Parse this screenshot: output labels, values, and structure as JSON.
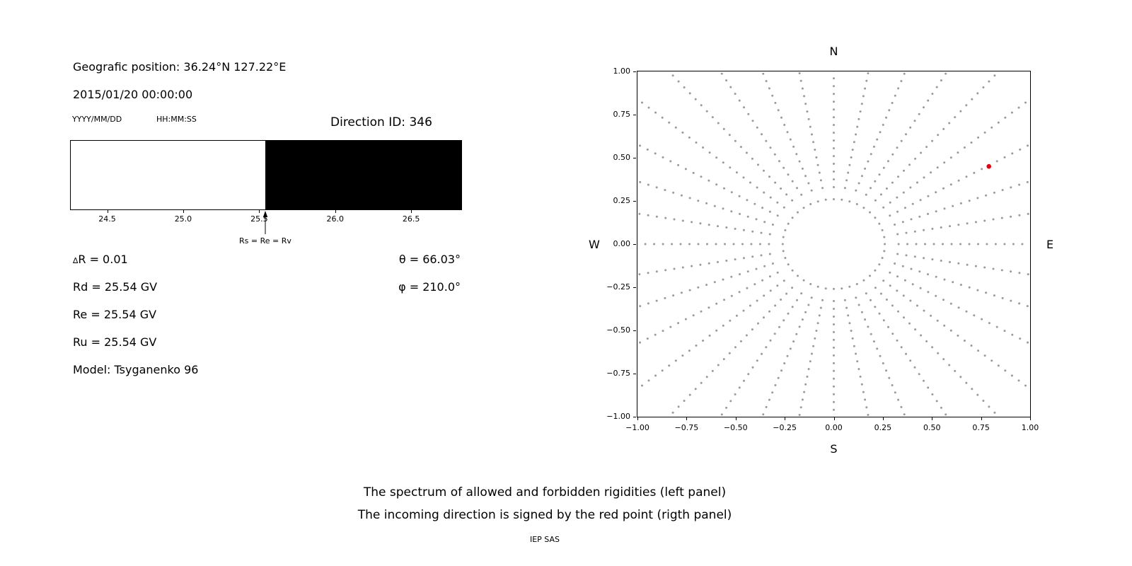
{
  "colors": {
    "background": "#ffffff",
    "text": "#000000",
    "allowed": "#ffffff",
    "forbidden": "#000000",
    "scatter_point": "#9a9a9a",
    "red_point": "#e8000b",
    "axis": "#000000"
  },
  "left_panel": {
    "geo_position": "Geografic position: 36.24°N 127.22°E",
    "datetime": "2015/01/20 00:00:00",
    "date_format_label": "YYYY/MM/DD",
    "time_format_label": "HH:MM:SS",
    "direction_id": "Direction ID: 346",
    "params": {
      "delta_symbol": "∆",
      "delta_rest": "R = 0.01",
      "rd": "Rd = 25.54 GV",
      "re": "Re = 25.54 GV",
      "ru": "Ru = 25.54 GV",
      "model": "Model: Tsyganenko 96",
      "theta": "θ = 66.03°",
      "phi": "φ = 210.0°"
    }
  },
  "captions": {
    "line1": "The spectrum of allowed and forbidden rigidities (left panel)",
    "line2": "The incoming direction is signed by the red point (rigth panel)",
    "credit": "IEP SAS"
  },
  "chart_data": [
    {
      "type": "bar",
      "description": "Rigidity spectrum: allowed (white) and forbidden (black) regions",
      "x_range": [
        24.26,
        26.83
      ],
      "segments": [
        {
          "name": "allowed",
          "from": 24.26,
          "to": 25.54,
          "color": "#ffffff"
        },
        {
          "name": "forbidden",
          "from": 25.54,
          "to": 26.83,
          "color": "#000000"
        }
      ],
      "x_ticks": [
        24.5,
        25.0,
        25.5,
        26.0,
        26.5
      ],
      "annotation": {
        "label": "Rs = Re = Rv",
        "x": 25.54
      }
    },
    {
      "type": "scatter",
      "description": "Incoming direction map; gray radial trajectory points, red incoming direction",
      "compass": {
        "top": "N",
        "bottom": "S",
        "left": "W",
        "right": "E"
      },
      "xlim": [
        -1.0,
        1.0
      ],
      "ylim": [
        -1.0,
        1.0
      ],
      "grid": false,
      "ticks": [
        {
          "v": -1.0,
          "label": "−1.00"
        },
        {
          "v": -0.75,
          "label": "−0.75"
        },
        {
          "v": -0.5,
          "label": "−0.50"
        },
        {
          "v": -0.25,
          "label": "−0.25"
        },
        {
          "v": 0.0,
          "label": "0.00"
        },
        {
          "v": 0.25,
          "label": "0.25"
        },
        {
          "v": 0.5,
          "label": "0.50"
        },
        {
          "v": 0.75,
          "label": "0.75"
        },
        {
          "v": 1.0,
          "label": "1.00"
        }
      ],
      "spokes": {
        "count": 36,
        "angle_step_deg": 10,
        "r_start": 0.33,
        "r_end": 1.45,
        "r_step": 0.045
      },
      "inner_ring": {
        "radius": 0.26,
        "points": 40
      },
      "red_point": {
        "x": 0.79,
        "y": 0.45
      }
    }
  ]
}
